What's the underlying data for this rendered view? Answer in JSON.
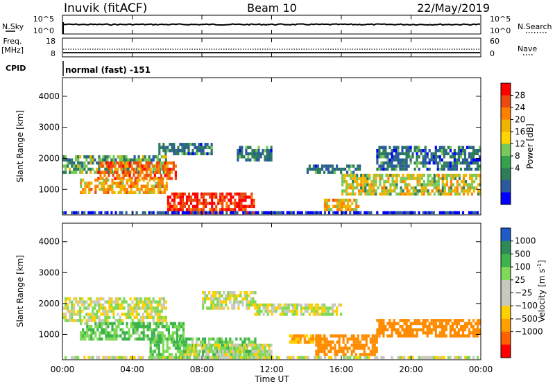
{
  "header": {
    "station": "Inuvik (fitACF)",
    "beam": "Beam 10",
    "date": "22/May/2019"
  },
  "sky_panel": {
    "left_label": "N.Sky",
    "right_label": "N.Search",
    "ticks": [
      "10^5",
      "10^0"
    ]
  },
  "freq_panel": {
    "left_label_1": "Freq.",
    "left_label_2": "[MHz]",
    "left_ticks": [
      "18",
      "8"
    ],
    "right_label": "Nave",
    "right_ticks": [
      "60",
      "0"
    ]
  },
  "cpid": {
    "label": "CPID",
    "mode": "normal (fast) -151"
  },
  "chart_data": [
    {
      "type": "heatmap",
      "quantity": "power",
      "ylabel": "Slant Range [km]",
      "ylim": [
        180,
        4600
      ],
      "yticks": [
        "1000",
        "2000",
        "3000",
        "4000"
      ],
      "colorbar_label": "Power [dB]",
      "colorbar_ticks": [
        "28",
        "24",
        "20",
        "16",
        "12",
        "8",
        "4"
      ],
      "colorbar_colors": [
        "#ff0000",
        "#e84a10",
        "#ff8000",
        "#f0b400",
        "#ffd400",
        "#78c85a",
        "#35a24e",
        "#2e7d5a",
        "#2c5aa0",
        "#0000ff"
      ],
      "echo_regions": [
        {
          "t": [
            0,
            6
          ],
          "r": [
            1500,
            2100
          ],
          "level": 12
        },
        {
          "t": [
            2,
            6.5
          ],
          "r": [
            1300,
            1900
          ],
          "level": 24
        },
        {
          "t": [
            1,
            6
          ],
          "r": [
            850,
            1300
          ],
          "level": 20
        },
        {
          "t": [
            6,
            11
          ],
          "r": [
            200,
            900
          ],
          "level": 28
        },
        {
          "t": [
            5.5,
            8.5
          ],
          "r": [
            2100,
            2500
          ],
          "level": 8
        },
        {
          "t": [
            10,
            12
          ],
          "r": [
            1900,
            2400
          ],
          "level": 8
        },
        {
          "t": [
            14,
            17
          ],
          "r": [
            1500,
            1800
          ],
          "level": 8
        },
        {
          "t": [
            15,
            17
          ],
          "r": [
            300,
            700
          ],
          "level": 20
        },
        {
          "t": [
            16,
            24
          ],
          "r": [
            800,
            1500
          ],
          "level": 16
        },
        {
          "t": [
            18,
            24
          ],
          "r": [
            1600,
            2400
          ],
          "level": 8
        },
        {
          "t": [
            0,
            24
          ],
          "r": [
            200,
            260
          ],
          "level": 4
        }
      ]
    },
    {
      "type": "heatmap",
      "quantity": "velocity",
      "xlabel": "Time UT",
      "xticks": [
        "00:00",
        "04:00",
        "08:00",
        "12:00",
        "16:00",
        "20:00",
        "00:00"
      ],
      "ylabel": "Slant Range [km]",
      "ylim": [
        180,
        4600
      ],
      "yticks": [
        "1000",
        "2000",
        "3000",
        "4000"
      ],
      "colorbar_label": "Velocity [m s",
      "colorbar_label_sup": "-1",
      "colorbar_label_close": "]",
      "colorbar_ticks": [
        "1000",
        "500",
        "100",
        "25",
        "−25",
        "−100",
        "−500",
        "−1000"
      ],
      "colorbar_colors": [
        "#1e5ac8",
        "#2e8b57",
        "#3cb44b",
        "#7ed957",
        "#c8c8c0",
        "#c8c8c0",
        "#ffd000",
        "#ffa000",
        "#ff6000",
        "#ff0000"
      ],
      "echo_regions": [
        {
          "t": [
            0,
            6
          ],
          "r": [
            1400,
            2200
          ],
          "v": 0
        },
        {
          "t": [
            1,
            7
          ],
          "r": [
            800,
            1400
          ],
          "v": 100
        },
        {
          "t": [
            5,
            11
          ],
          "r": [
            200,
            900
          ],
          "v": 100
        },
        {
          "t": [
            7,
            12
          ],
          "r": [
            200,
            700
          ],
          "v": 0
        },
        {
          "t": [
            8,
            11
          ],
          "r": [
            1800,
            2400
          ],
          "v": 0
        },
        {
          "t": [
            11,
            16
          ],
          "r": [
            1600,
            2000
          ],
          "v": 0
        },
        {
          "t": [
            13,
            15
          ],
          "r": [
            700,
            1000
          ],
          "v": -100
        },
        {
          "t": [
            14.5,
            18
          ],
          "r": [
            300,
            1000
          ],
          "v": -300
        },
        {
          "t": [
            18,
            24
          ],
          "r": [
            900,
            1500
          ],
          "v": -300
        },
        {
          "t": [
            0,
            24
          ],
          "r": [
            200,
            260
          ],
          "v": 0
        }
      ]
    }
  ]
}
